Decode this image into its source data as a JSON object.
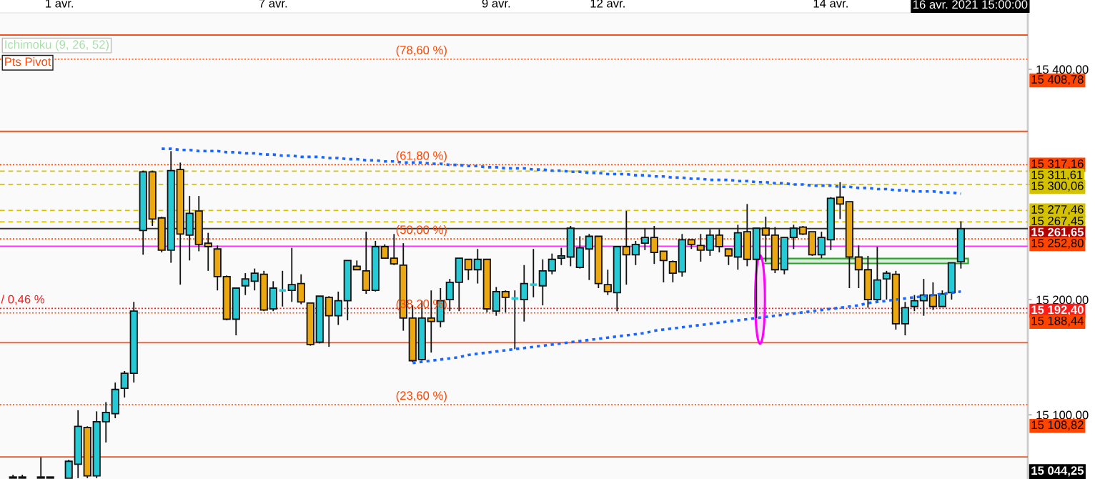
{
  "chart_data": {
    "type": "candlestick",
    "categories": [
      null,
      null,
      null,
      null,
      null,
      "1 avr.",
      null,
      null,
      null,
      null,
      null,
      null,
      null,
      null,
      null,
      null,
      null,
      null,
      null,
      null,
      null,
      null,
      null,
      null,
      null,
      null,
      null,
      null,
      "7 avr.",
      null,
      null,
      null,
      null,
      null,
      null,
      null,
      null,
      null,
      null,
      null,
      null,
      null,
      null,
      null,
      null,
      null,
      null,
      null,
      null,
      null,
      null,
      null,
      "9 avr.",
      null,
      null,
      null,
      null,
      null,
      null,
      null,
      null,
      null,
      null,
      null,
      "12 avr.",
      null,
      null,
      null,
      null,
      null,
      null,
      null,
      null,
      null,
      null,
      null,
      null,
      null,
      null,
      null,
      null,
      null,
      null,
      null,
      null,
      null,
      null,
      null,
      "14 avr.",
      null,
      null,
      null,
      null,
      null,
      null,
      null,
      null,
      null,
      null,
      null,
      null,
      null,
      null
    ],
    "ylim": [
      15044.25,
      15449
    ],
    "yticks": [
      {
        "value": 15100,
        "label": "15 100,00"
      },
      {
        "value": 15200,
        "label": "15 200,00"
      },
      {
        "value": 15300,
        "label": null
      },
      {
        "value": 15400,
        "label": "15 400,00"
      }
    ],
    "grid": false,
    "series": [
      {
        "ohlc": [
          [
            15046,
            15048,
            15045,
            15045
          ],
          [
            15046,
            15048,
            15045,
            15045
          ],
          null,
          [
            15045,
            15063,
            15045,
            15046
          ],
          [
            15045,
            15046,
            15045,
            15046
          ],
          null,
          [
            15045,
            15061,
            15045,
            15059.6
          ],
          [
            15057,
            15104,
            15045,
            15090
          ],
          [
            15089,
            15090,
            15045,
            15047
          ],
          [
            15047,
            15103,
            15045,
            15094
          ],
          [
            15094,
            15111,
            15076,
            15102
          ],
          [
            15101,
            15128,
            15097,
            15122
          ],
          [
            15123,
            15138,
            15115,
            15136
          ],
          [
            15136,
            15198,
            15128,
            15190
          ],
          [
            15260,
            15312,
            15239,
            15311
          ],
          [
            15311,
            15312,
            15264,
            15270
          ],
          [
            15271,
            15272,
            15241,
            15243
          ],
          [
            15243,
            15329,
            15232,
            15312
          ],
          [
            15313,
            15319,
            15213,
            15257
          ],
          [
            15256,
            15290,
            15234,
            15275
          ],
          [
            15277,
            15290,
            15242,
            15248
          ],
          [
            15249,
            15258,
            15225,
            15246
          ],
          [
            15244,
            15247,
            15208,
            15220
          ],
          [
            15220,
            15221,
            15182,
            15183
          ],
          [
            15183,
            15210,
            15169,
            15210
          ],
          [
            15212,
            15223,
            15204,
            15218
          ],
          [
            15216,
            15227,
            15208,
            15223
          ],
          [
            15222,
            15225,
            15190,
            15191
          ],
          [
            15192,
            15216,
            15190,
            15210
          ],
          [
            15208,
            15225,
            15194,
            15208
          ],
          [
            15208,
            15245,
            15198,
            15213
          ],
          [
            15214,
            15222,
            15196,
            15198
          ],
          [
            15197,
            15197,
            15160,
            15161
          ],
          [
            15163,
            15203,
            15162,
            15203
          ],
          [
            15202,
            15203,
            15159,
            15186
          ],
          [
            15186,
            15207,
            15178,
            15199
          ],
          [
            15199,
            15234,
            15182,
            15234
          ],
          [
            15229,
            15234,
            15226,
            15226
          ],
          [
            15225,
            15259,
            15205,
            15208
          ],
          [
            15208,
            15251,
            15207,
            15246
          ],
          [
            15246,
            15248,
            15236,
            15236
          ],
          [
            15236,
            15257,
            15230,
            15231
          ],
          [
            15230,
            15249,
            15173,
            15184
          ],
          [
            15184,
            15195,
            15146,
            15147
          ],
          [
            15148,
            15199,
            15147,
            15184
          ],
          [
            15184,
            15208,
            15154,
            15181
          ],
          [
            15181,
            15210,
            15176,
            15199
          ],
          [
            15200,
            15218,
            15190,
            15215
          ],
          [
            15215,
            15236,
            15190,
            15236
          ],
          [
            15235,
            15235,
            15217,
            15226
          ],
          [
            15226,
            15244,
            15214,
            15235
          ],
          [
            15235,
            15235,
            15189,
            15192
          ],
          [
            15190,
            15211,
            15186,
            15207
          ],
          [
            15207,
            15208,
            15189,
            15202
          ],
          [
            15201,
            15208,
            15157,
            15201
          ],
          [
            15200,
            15230,
            15181,
            15214
          ],
          [
            15213,
            15244,
            15202,
            15213
          ],
          [
            15212,
            15235,
            15195,
            15225
          ],
          [
            15225,
            15240,
            15222,
            15235
          ],
          [
            15236,
            15245,
            15230,
            15238
          ],
          [
            15237,
            15264,
            15229,
            15262
          ],
          [
            15228,
            15255,
            15227,
            15245
          ],
          [
            15244,
            15257,
            15217,
            15255
          ],
          [
            15255,
            15255,
            15210,
            15214
          ],
          [
            15213,
            15226,
            15204,
            15207
          ],
          [
            15206,
            15246,
            15190,
            15246
          ],
          [
            15246,
            15277,
            15213,
            15239
          ],
          [
            15239,
            15251,
            15230,
            15248
          ],
          [
            15249,
            15262,
            15243,
            15254
          ],
          [
            15254,
            15264,
            15231,
            15241
          ],
          [
            15242,
            15242,
            15215,
            15234
          ],
          [
            15233,
            15234,
            15215,
            15223
          ],
          [
            15224,
            15257,
            15220,
            15252
          ],
          [
            15252,
            15252,
            15244,
            15248
          ],
          [
            15247,
            15257,
            15233,
            15243
          ],
          [
            15243,
            15261,
            15238,
            15256
          ],
          [
            15256,
            15261,
            15241,
            15246
          ],
          [
            15244,
            15244,
            15230,
            15238
          ],
          [
            15237,
            15265,
            15226,
            15258
          ],
          [
            15259,
            15283,
            15229,
            15235
          ],
          [
            15235,
            15262,
            15184,
            15262
          ],
          [
            15262,
            15272,
            15233,
            15256
          ],
          [
            15256,
            15263,
            15223,
            15226
          ],
          [
            15226,
            15254,
            15222,
            15254
          ],
          [
            15254,
            15265,
            15244,
            15262
          ],
          [
            15263,
            15264,
            15256,
            15257
          ],
          [
            15259,
            15259,
            15238,
            15239
          ],
          [
            15239,
            15259,
            15236,
            15254
          ],
          [
            15252,
            15289,
            15243,
            15288
          ],
          [
            15289,
            15302,
            15270,
            15283
          ],
          [
            15285,
            15285,
            15210,
            15237
          ],
          [
            15237,
            15247,
            15210,
            15226
          ],
          [
            15226,
            15238,
            15193,
            15200
          ],
          [
            15200,
            15246,
            15198,
            15217
          ],
          [
            15218,
            15225,
            15200,
            15223
          ],
          [
            15222,
            15225,
            15174,
            15179
          ],
          [
            15179,
            15198,
            15169,
            15193
          ],
          [
            15194,
            15204,
            15190,
            15199
          ],
          [
            15199,
            15218,
            15186,
            15204
          ],
          [
            15204,
            15215,
            15191,
            15194
          ],
          [
            15194,
            15208,
            15194,
            15205
          ],
          [
            15206,
            15232,
            15200,
            15232
          ],
          [
            15233,
            15268,
            15227,
            15261.65
          ]
        ],
        "colors": [
          "#eba811",
          "#eba811",
          null,
          "#26c9d4",
          "#26c9d4",
          null,
          "#26c9d4",
          "#26c9d4",
          "#eba811",
          "#26c9d4",
          "#26c9d4",
          "#26c9d4",
          "#26c9d4",
          "#26c9d4",
          "#26c9d4",
          "#eba811",
          "#eba811",
          "#26c9d4",
          "#eba811",
          "#26c9d4",
          "#eba811",
          "#eba811",
          "#eba811",
          "#eba811",
          "#26c9d4",
          "#26c9d4",
          "#26c9d4",
          "#eba811",
          "#26c9d4",
          "#26c9d4",
          "#26c9d4",
          "#eba811",
          "#eba811",
          "#26c9d4",
          "#eba811",
          "#26c9d4",
          "#26c9d4",
          "#eba811",
          "#eba811",
          "#26c9d4",
          "#eba811",
          "#eba811",
          "#eba811",
          "#eba811",
          "#26c9d4",
          "#eba811",
          "#26c9d4",
          "#26c9d4",
          "#26c9d4",
          "#eba811",
          "#26c9d4",
          "#eba811",
          "#26c9d4",
          "#eba811",
          "#26c9d4",
          "#26c9d4",
          "#26c9d4",
          "#26c9d4",
          "#26c9d4",
          "#26c9d4",
          "#26c9d4",
          "#26c9d4",
          "#26c9d4",
          "#eba811",
          "#eba811",
          "#26c9d4",
          "#eba811",
          "#26c9d4",
          "#26c9d4",
          "#eba811",
          "#eba811",
          "#eba811",
          "#26c9d4",
          "#eba811",
          "#eba811",
          "#26c9d4",
          "#eba811",
          "#eba811",
          "#26c9d4",
          "#eba811",
          "#26c9d4",
          "#eba811",
          "#eba811",
          "#26c9d4",
          "#26c9d4",
          "#eba811",
          "#eba811",
          "#26c9d4",
          "#26c9d4",
          "#eba811",
          "#eba811",
          "#eba811",
          "#eba811",
          "#26c9d4",
          "#26c9d4",
          "#eba811",
          "#26c9d4",
          "#26c9d4",
          "#26c9d4",
          "#eba811",
          "#26c9d4",
          "#26c9d4",
          "#26c9d4"
        ]
      },
      {
        "type": "line",
        "color": "#1a66ff",
        "line_style": "dotted",
        "values": [
          null,
          null,
          null,
          null,
          null,
          null,
          null,
          null,
          null,
          null,
          null,
          null,
          null,
          null,
          null,
          null,
          15331,
          15331,
          15330,
          15330,
          15329,
          15329,
          15329,
          15328,
          15328,
          15327,
          15327,
          15326,
          15326,
          15325,
          15325,
          15324,
          15324,
          15324,
          15323,
          15323,
          15322,
          15322,
          15321,
          15321,
          15320,
          15320,
          15319,
          15319,
          15319,
          15318,
          15318,
          15317,
          15317,
          15316,
          15316,
          15315,
          15315,
          15314,
          15314,
          15314,
          15313,
          15313,
          15312,
          15312,
          15311,
          15311,
          15310,
          15310,
          15309,
          15309,
          15309,
          15308,
          15308,
          15307,
          15307,
          15306,
          15306,
          15305,
          15305,
          15304,
          15304,
          15304,
          15303,
          15303,
          15302,
          15302,
          15301,
          15301,
          15300,
          15300,
          15299,
          15299,
          15299,
          15298,
          15298,
          15297,
          15297,
          15296,
          15296,
          15295,
          15295,
          15294,
          15294,
          15294,
          15293,
          15293,
          15292
        ]
      },
      {
        "type": "line",
        "color": "#1a66ff",
        "line_style": "dotted",
        "values": [
          null,
          null,
          null,
          null,
          null,
          null,
          null,
          null,
          null,
          null,
          null,
          null,
          null,
          null,
          null,
          null,
          null,
          null,
          null,
          null,
          null,
          null,
          null,
          null,
          null,
          null,
          null,
          null,
          null,
          null,
          null,
          null,
          null,
          null,
          null,
          null,
          null,
          null,
          null,
          null,
          null,
          null,
          null,
          15145,
          15146,
          15147,
          15148,
          15149,
          15150,
          15152,
          15153,
          15154,
          15155,
          15156,
          15157,
          15158,
          15159,
          15160,
          15161,
          15162,
          15163,
          15164,
          15165,
          15166,
          15167,
          15168,
          15169,
          15170,
          15171,
          15173,
          15174,
          15175,
          15176,
          15177,
          15178,
          15179,
          15180,
          15181,
          15182,
          15183,
          15184,
          15185,
          15186,
          15187,
          15188,
          15189,
          15190,
          15191,
          15192,
          15193,
          15194,
          15195,
          15197,
          15198,
          15199,
          15200,
          15201,
          15202,
          15203,
          15204,
          15205,
          15206,
          15207
        ]
      }
    ],
    "ref_lines": [
      {
        "axis": "y",
        "value": 15429.8,
        "color": "#f4511e",
        "line_style": "solid"
      },
      {
        "axis": "y",
        "value": 15346.1,
        "color": "#f4511e",
        "line_style": "solid"
      },
      {
        "axis": "y",
        "value": 15162.6,
        "color": "#f4511e",
        "line_style": "solid"
      },
      {
        "axis": "y",
        "value": 15063.4,
        "color": "#f4511e",
        "line_style": "solid"
      },
      {
        "axis": "y",
        "value": 15408.78,
        "label": "15 408,78",
        "color": "#ff4500",
        "line_style": "dotted"
      },
      {
        "axis": "y",
        "value": 15317.16,
        "label": "15 317,16",
        "color": "#ff4500",
        "line_style": "dotted"
      },
      {
        "axis": "y",
        "value": 15311.61,
        "label": "15 311,61",
        "color": "#d4c200",
        "line_style": "dashed"
      },
      {
        "axis": "y",
        "value": 15300.06,
        "label": "15 300,06",
        "color": "#d4c200",
        "line_style": "dashed"
      },
      {
        "axis": "y",
        "value": 15277.46,
        "label": "15 277,46",
        "color": "#d4c200",
        "line_style": "dashed"
      },
      {
        "axis": "y",
        "value": 15267.45,
        "label": "15 267,45",
        "color": "#d4c200",
        "line_style": "dashed"
      },
      {
        "axis": "y",
        "value": 15261.65,
        "label": "15 261,65",
        "color": "#333333",
        "line_style": "solid"
      },
      {
        "axis": "y",
        "value": 15252.8,
        "label": "15 252,80",
        "color": "#ff4500",
        "line_style": "dotted"
      },
      {
        "axis": "y",
        "value": 15246.3,
        "color": "#ff33ff",
        "line_style": "solid"
      },
      {
        "axis": "y",
        "value": 15192.4,
        "label": "15 192,40",
        "color": "#ff1a1a",
        "line_style": "dotted"
      },
      {
        "axis": "y",
        "value": 15188.44,
        "label": "15 188,44",
        "color": "#ff4500",
        "line_style": "dotted"
      },
      {
        "axis": "y",
        "value": 15108.82,
        "label": "15 108,82",
        "color": "#ff4500",
        "line_style": "dotted"
      }
    ],
    "bands": [
      {
        "axis": "y",
        "from": 15231.4,
        "to": 15235.7,
        "color": "#2e9e2e"
      }
    ],
    "annotations": [
      "Ichimoku (9, 26, 52)",
      "Pts Pivot",
      "16 avr. 2021 15:00:00",
      "15 044,25",
      {
        "text": "(78,60 %)",
        "y": 15408.78
      },
      {
        "text": "(61,80 %)",
        "y": 15317.16
      },
      {
        "text": "(50,00 %)",
        "y": 15252.8
      },
      {
        "text": "(38,20 %)",
        "y": 15188.44
      },
      {
        "text": "(23,60 %)",
        "y": 15108.82
      },
      {
        "text": "/ 0,46 %",
        "y": 15192.4
      }
    ]
  }
}
